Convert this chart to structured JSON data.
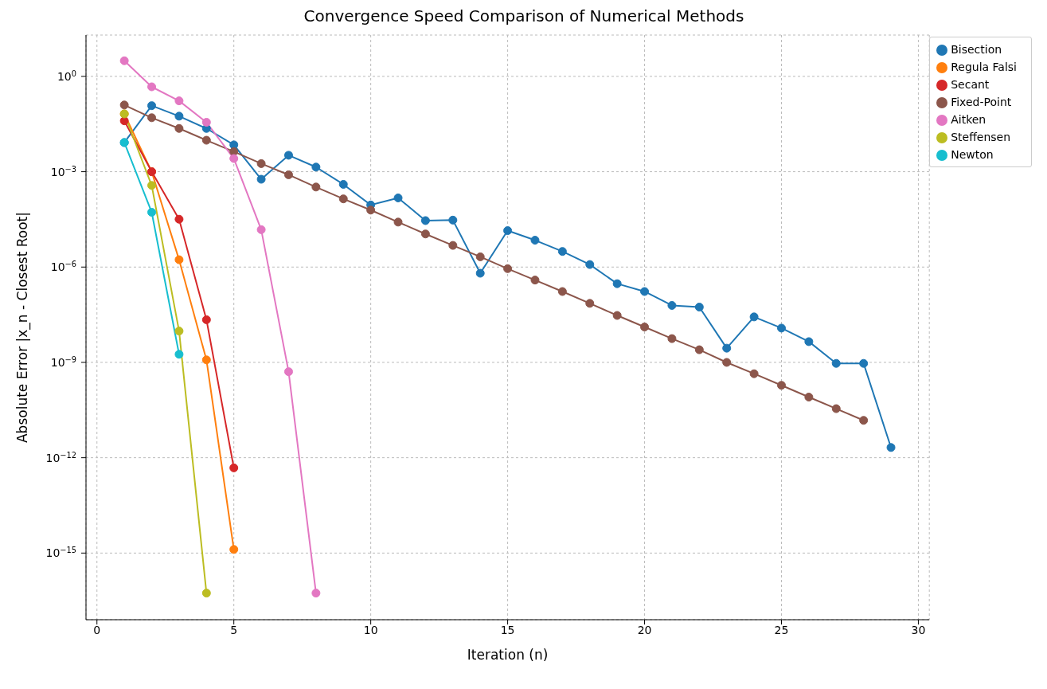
{
  "chart_data": {
    "type": "line",
    "title": "Convergence Speed Comparison of Numerical Methods",
    "xlabel": "Iteration (n)",
    "ylabel": "Absolute Error |x_n - Closest Root|",
    "log": "y",
    "grid": true,
    "legend": "top right",
    "marker": "circle",
    "line_style": "solid",
    "xlim": [
      -0.4,
      30.4
    ],
    "xticks": [
      0,
      5,
      10,
      15,
      20,
      25,
      30
    ],
    "ylim": [
      8e-18,
      20
    ],
    "yticks": [
      {
        "value": 1,
        "label": "10$^{0}$"
      },
      {
        "value": 0.001,
        "label": "10$^{−3}$"
      },
      {
        "value": 1e-06,
        "label": "10$^{−6}$"
      },
      {
        "value": 1e-09,
        "label": "10$^{−9}$"
      },
      {
        "value": 1e-12,
        "label": "10$^{−12}$"
      },
      {
        "value": 1e-15,
        "label": "10$^{−15}$"
      }
    ],
    "series": [
      {
        "name": "Bisection",
        "color": "#1f77b4",
        "x": [
          1,
          2,
          3,
          4,
          5,
          6,
          7,
          8,
          9,
          10,
          11,
          12,
          13,
          14,
          15,
          16,
          17,
          18,
          19,
          20,
          21,
          22,
          23,
          24,
          25,
          26,
          27,
          28,
          29
        ],
        "values": [
          0.0083,
          0.12,
          0.056,
          0.023,
          0.007,
          0.00058,
          0.0033,
          0.0014,
          0.0004,
          9e-05,
          0.00015,
          2.9e-05,
          3e-05,
          6.4e-07,
          1.4e-05,
          7e-06,
          3.1e-06,
          1.2e-06,
          3e-07,
          1.7e-07,
          6.2e-08,
          5.5e-08,
          2.8e-09,
          2.7e-08,
          1.2e-08,
          4.5e-09,
          9.3e-10,
          9.3e-10,
          2.1e-12
        ]
      },
      {
        "name": "Regula Falsi",
        "color": "#ff7f0e",
        "x": [
          1,
          2,
          3,
          4,
          5
        ],
        "values": [
          0.066,
          0.001,
          1.7e-06,
          1.2e-09,
          1.3e-15
        ]
      },
      {
        "name": "Secant",
        "color": "#d62728",
        "x": [
          1,
          2,
          3,
          4,
          5
        ],
        "values": [
          0.04,
          0.001,
          3.2e-05,
          2.2e-08,
          4.8e-13
        ]
      },
      {
        "name": "Fixed-Point",
        "color": "#8c564b",
        "x": [
          1,
          2,
          3,
          4,
          5,
          6,
          7,
          8,
          9,
          10,
          11,
          12,
          13,
          14,
          15,
          16,
          17,
          18,
          19,
          20,
          21,
          22,
          23,
          24,
          25,
          26,
          27,
          28
        ],
        "values": [
          0.126,
          0.05,
          0.023,
          0.0098,
          0.0043,
          0.0018,
          0.0008,
          0.00033,
          0.00014,
          6.2e-05,
          2.6e-05,
          1.1e-05,
          4.8e-06,
          2.1e-06,
          8.9e-07,
          3.9e-07,
          1.7e-07,
          7.2e-08,
          3e-08,
          1.3e-08,
          5.6e-09,
          2.5e-09,
          1e-09,
          4.4e-10,
          1.9e-10,
          8.1e-11,
          3.5e-11,
          1.5e-11
        ]
      },
      {
        "name": "Aitken",
        "color": "#e377c2",
        "x": [
          1,
          2,
          3,
          4,
          5,
          6,
          7,
          8
        ],
        "values": [
          3.1,
          0.47,
          0.17,
          0.036,
          0.0026,
          1.5e-05,
          5.1e-10,
          5.5e-17
        ]
      },
      {
        "name": "Steffensen",
        "color": "#bcbd22",
        "x": [
          1,
          2,
          3,
          4
        ],
        "values": [
          0.066,
          0.00037,
          9.7e-09,
          5.5e-17
        ]
      },
      {
        "name": "Newton",
        "color": "#17becf",
        "x": [
          1,
          2,
          3
        ],
        "values": [
          0.0083,
          5.3e-05,
          1.8e-09
        ]
      }
    ]
  }
}
